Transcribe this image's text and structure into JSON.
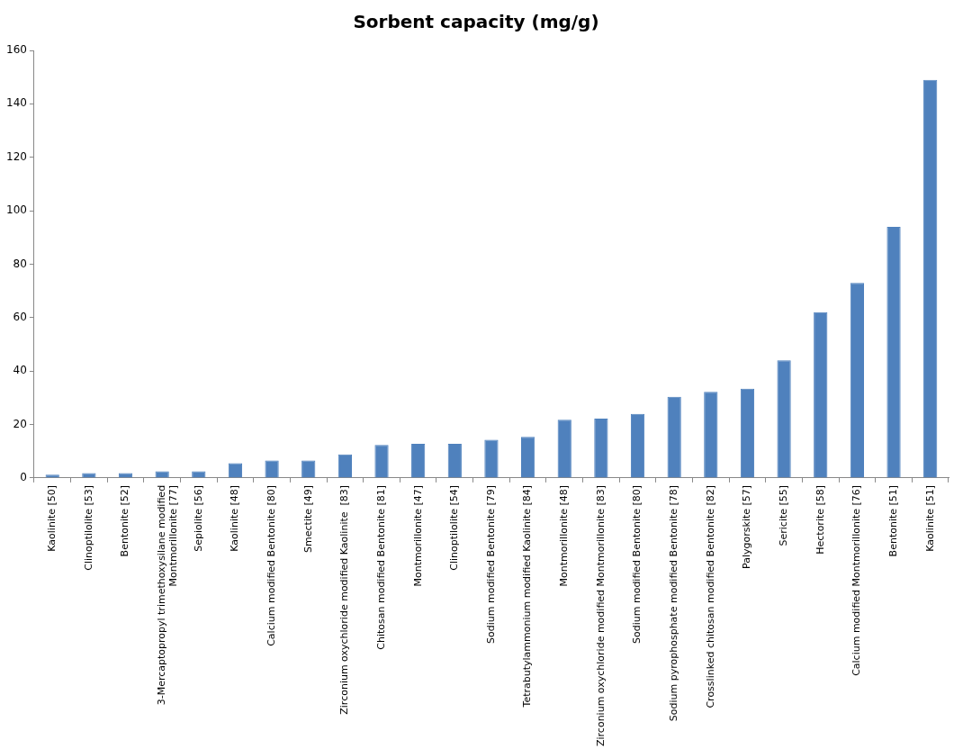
{
  "chart_data": {
    "type": "bar",
    "title": "Sorbent capacity (mg/g)",
    "categories": [
      "Kaolinite [50]",
      "Clinoptilolite [53]",
      "Bentonite [52]",
      "3-Mercaptopropyl trimethoxysilane modified Montmorillonite [77]",
      "Sepiolite [56]",
      "Kaolinite [48]",
      "Calcium modified Bentonite [80]",
      "Smectite [49]",
      "Zirconium oxychloride modified Kaolinite  [83]",
      "Chitosan modified Bentonite [81]",
      "Montmorillonite [47]",
      "Clinoptilolite [54]",
      "Sodium modified Bentonite [79]",
      "Tetrabutylammonium modified Kaolinite [84]",
      "Montmorillonite [48]",
      "Zirconium oxychloride modified Montmorillonite [83]",
      "Sodium modified Bentonite [80]",
      "Sodium pyrophosphate modified Bentonite [78]",
      "Crosslinked chitosan modified Bentonite [82]",
      "Palygorskite [57]",
      "Sericite [55]",
      "Hectorite [58]",
      "Calcium modified Montmorillonite [76]",
      "Bentonite [51]",
      "Kaolinite [51]"
    ],
    "values": [
      1.2,
      1.8,
      1.8,
      2.5,
      2.5,
      5.5,
      6.5,
      6.5,
      8.8,
      12.3,
      12.8,
      12.8,
      14.3,
      15.4,
      21.8,
      22.2,
      24,
      30.4,
      32.2,
      33.4,
      44,
      62,
      73,
      94,
      149
    ],
    "color": "#4f81bd",
    "ylim": [
      0,
      160
    ],
    "yticks": [
      0,
      20,
      40,
      60,
      80,
      100,
      120,
      140,
      160
    ],
    "grid": false,
    "legend": false
  }
}
